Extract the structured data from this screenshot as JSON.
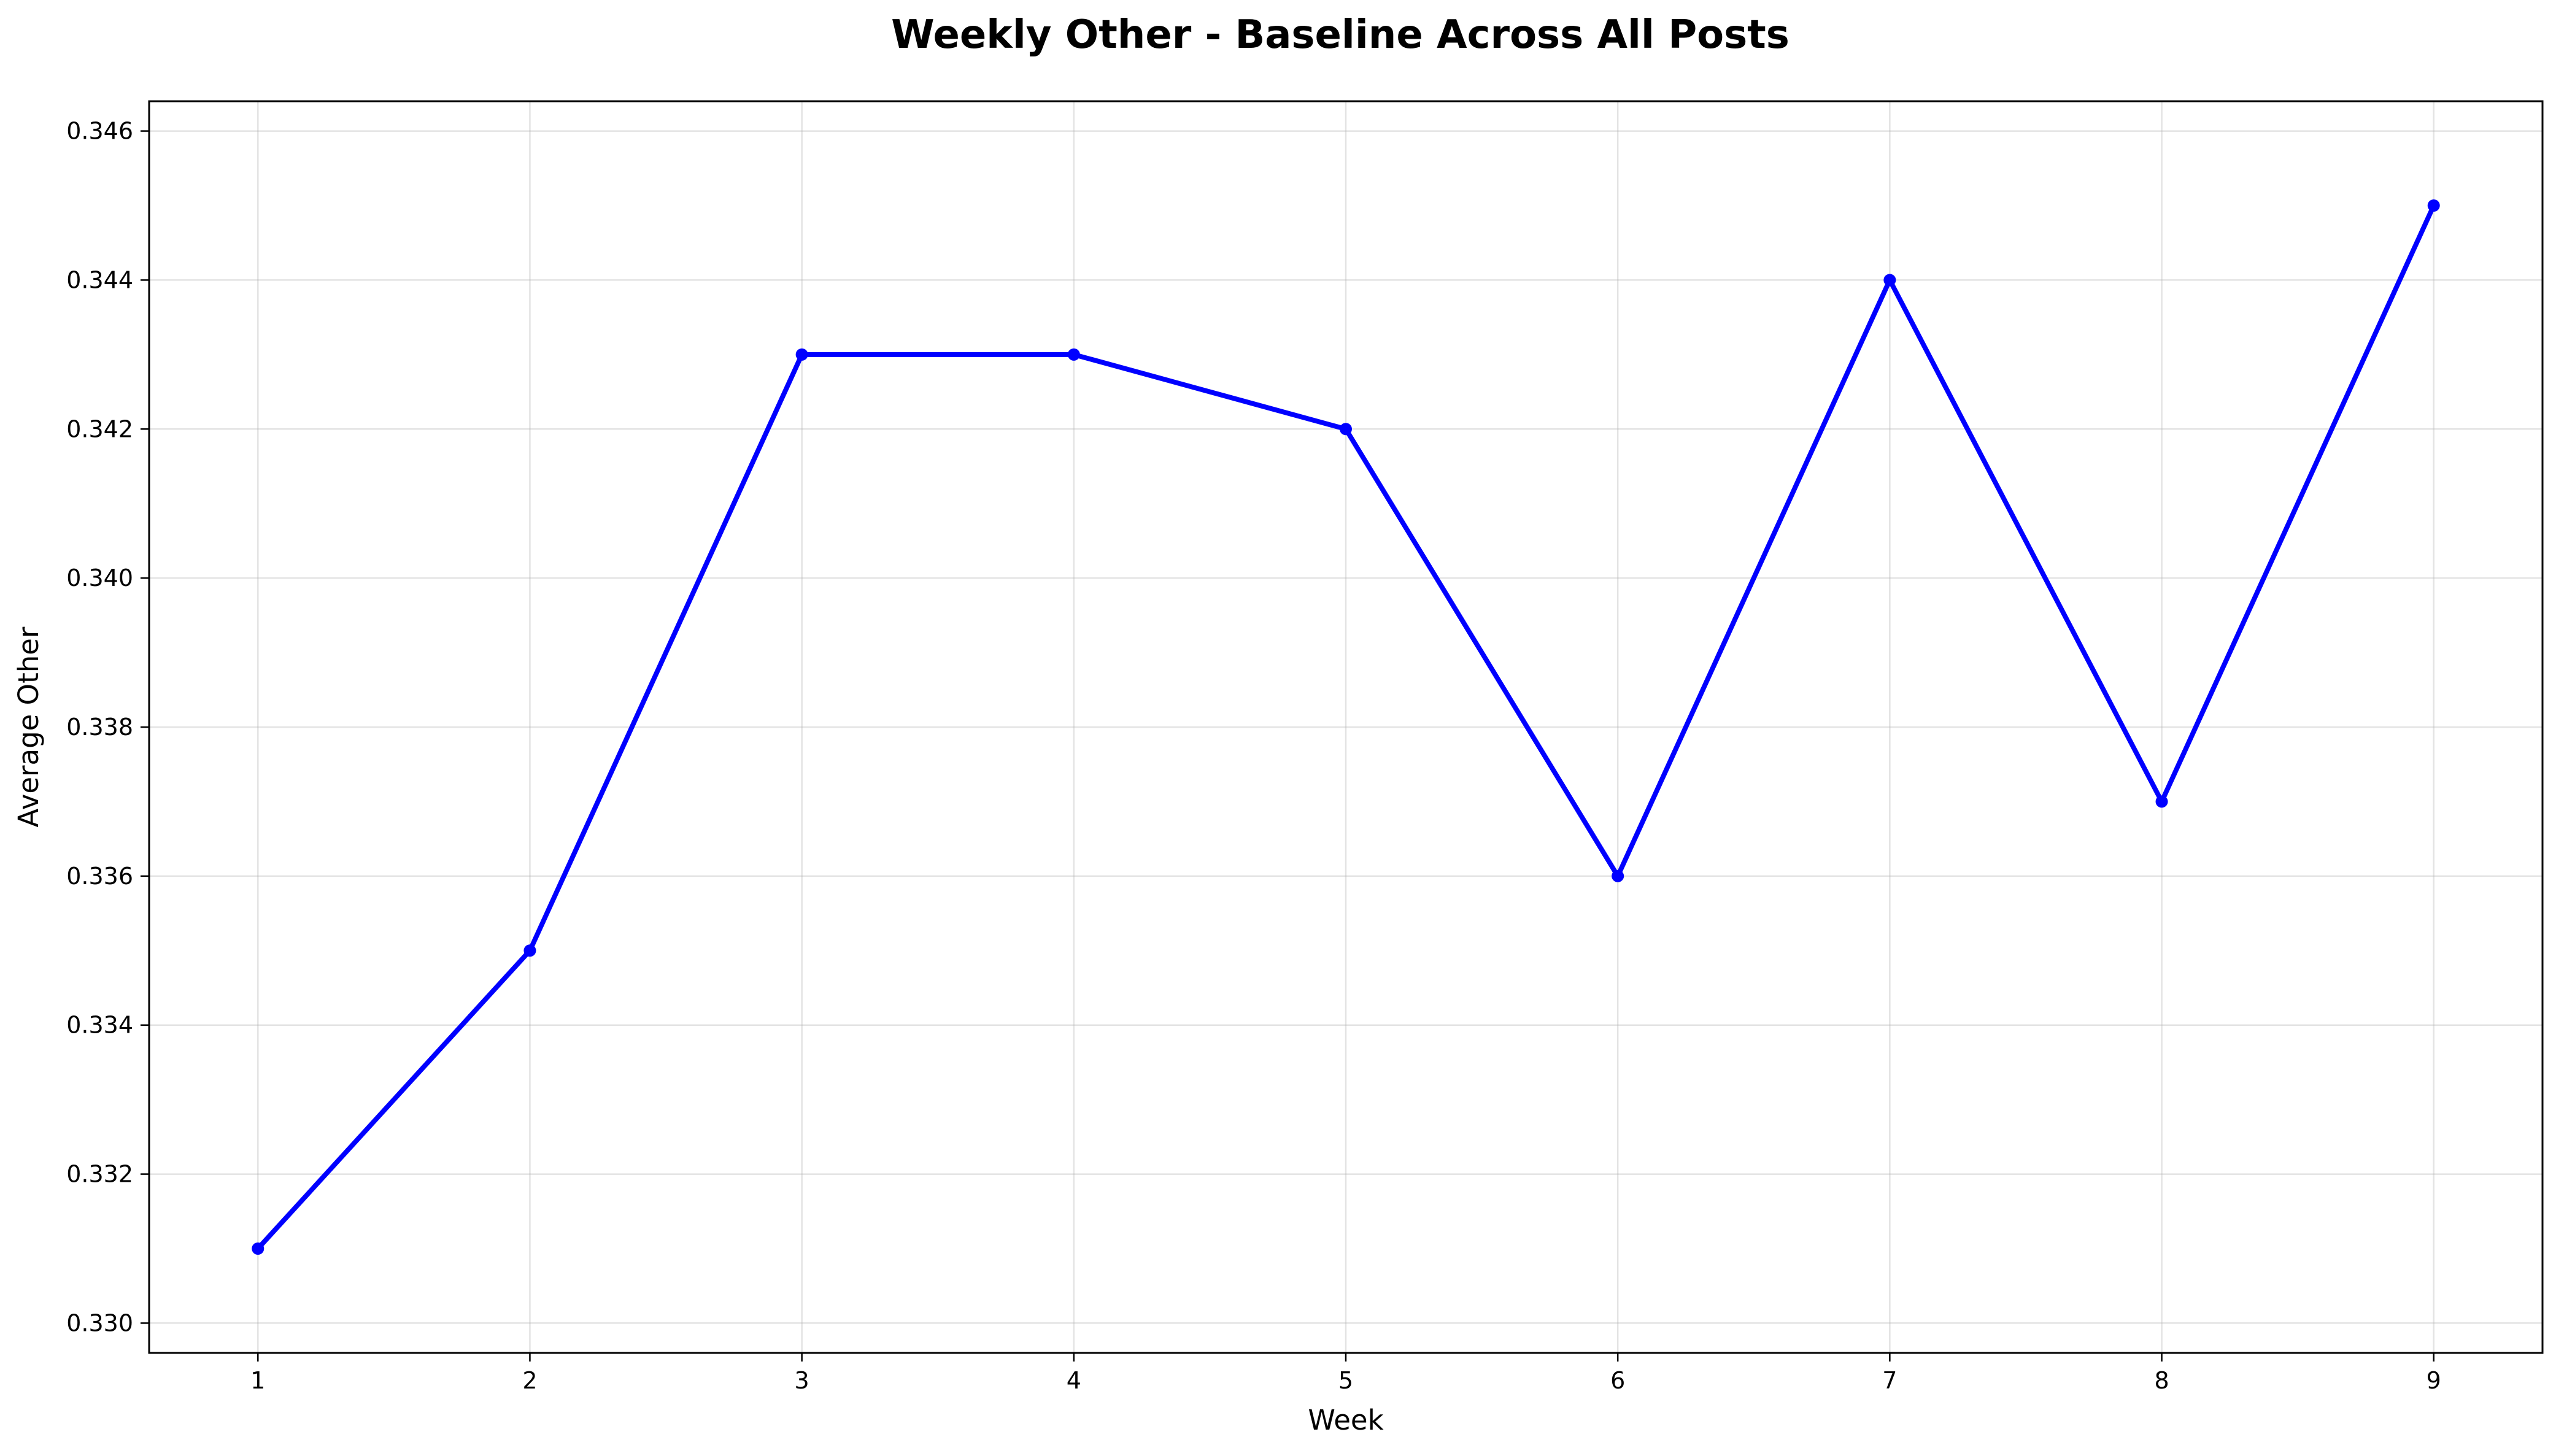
{
  "chart_data": {
    "type": "line",
    "title": "Weekly Other - Baseline Across All Posts",
    "xlabel": "Week",
    "ylabel": "Average Other",
    "x": [
      1,
      2,
      3,
      4,
      5,
      6,
      7,
      8,
      9
    ],
    "xlim": [
      0.6,
      9.4
    ],
    "x_ticks": [
      1,
      2,
      3,
      4,
      5,
      6,
      7,
      8,
      9
    ],
    "x_tick_labels": [
      "1",
      "2",
      "3",
      "4",
      "5",
      "6",
      "7",
      "8",
      "9"
    ],
    "ylim": [
      0.3296,
      0.3464
    ],
    "y_ticks": [
      0.33,
      0.332,
      0.334,
      0.336,
      0.338,
      0.34,
      0.342,
      0.344,
      0.346
    ],
    "y_tick_labels": [
      "0.330",
      "0.332",
      "0.334",
      "0.336",
      "0.338",
      "0.340",
      "0.342",
      "0.344",
      "0.346"
    ],
    "series": [
      {
        "values": [
          0.331,
          0.335,
          0.343,
          0.343,
          0.342,
          0.336,
          0.344,
          0.337,
          0.345
        ],
        "color": "#0000ff",
        "marker": "circle"
      }
    ],
    "grid": true,
    "legend": "none"
  }
}
